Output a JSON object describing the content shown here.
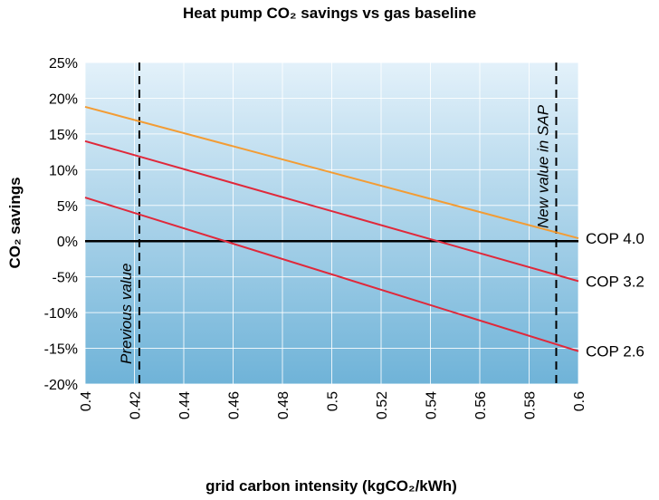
{
  "chart_data": {
    "type": "line",
    "title": "Heat pump CO₂ savings vs gas baseline",
    "xlabel": "grid carbon intensity (kgCO₂/kWh)",
    "ylabel": "CO₂ savings",
    "xlim": [
      0.4,
      0.6
    ],
    "ylim": [
      -20,
      25
    ],
    "x_ticks": [
      "0.4",
      "0.42",
      "0.44",
      "0.46",
      "0.48",
      "0.5",
      "0.52",
      "0.54",
      "0.56",
      "0.58",
      "0.6"
    ],
    "y_ticks": [
      "25%",
      "20%",
      "15%",
      "10%",
      "5%",
      "0%",
      "-5%",
      "-10%",
      "-15%",
      "-20%"
    ],
    "grid": true,
    "series": [
      {
        "name": "COP 4.0",
        "color": "#f39c34",
        "x": [
          0.4,
          0.6
        ],
        "y": [
          18.8,
          0.4
        ]
      },
      {
        "name": "COP 3.2",
        "color": "#e0283a",
        "x": [
          0.4,
          0.6
        ],
        "y": [
          14.0,
          -5.6
        ]
      },
      {
        "name": "COP 2.6",
        "color": "#e0283a",
        "x": [
          0.4,
          0.6
        ],
        "y": [
          6.1,
          -15.4
        ]
      }
    ],
    "reference_lines": [
      {
        "label": "Previous value",
        "x": 0.422
      },
      {
        "label": "New value in SAP",
        "x": 0.591
      }
    ],
    "zero_line": 0
  }
}
